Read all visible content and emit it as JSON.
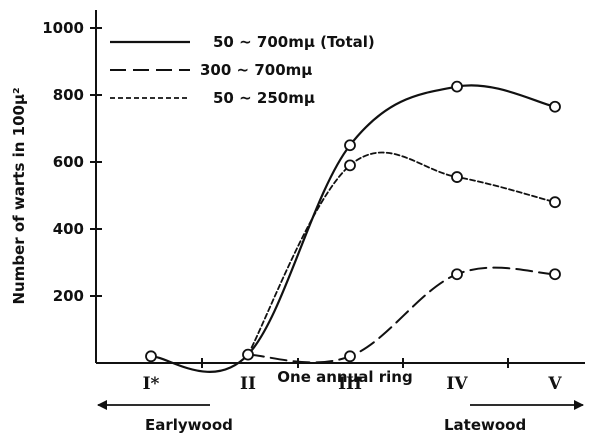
{
  "chart_data": {
    "type": "line",
    "xlabel": "One annual ring",
    "ylabel": "Number of warts in 100μ²",
    "categories": [
      "I*",
      "II",
      "III",
      "IV",
      "V"
    ],
    "ylim": [
      0,
      1000
    ],
    "yticks": [
      200,
      400,
      600,
      800,
      1000
    ],
    "grid": false,
    "legend_position": "top-left",
    "series": [
      {
        "name": "50 ~ 700mμ (Total)",
        "style": "solid",
        "values": [
          20,
          25,
          650,
          825,
          765
        ]
      },
      {
        "name": "300 ~ 700mμ",
        "style": "dashed",
        "values": [
          null,
          null,
          20,
          265,
          265
        ]
      },
      {
        "name": "50 ~ 250mμ",
        "style": "dotted",
        "values": [
          null,
          null,
          590,
          555,
          480
        ]
      }
    ],
    "annotations": {
      "left_arrow_label": "Earlywood",
      "right_arrow_label": "Latewood"
    }
  }
}
